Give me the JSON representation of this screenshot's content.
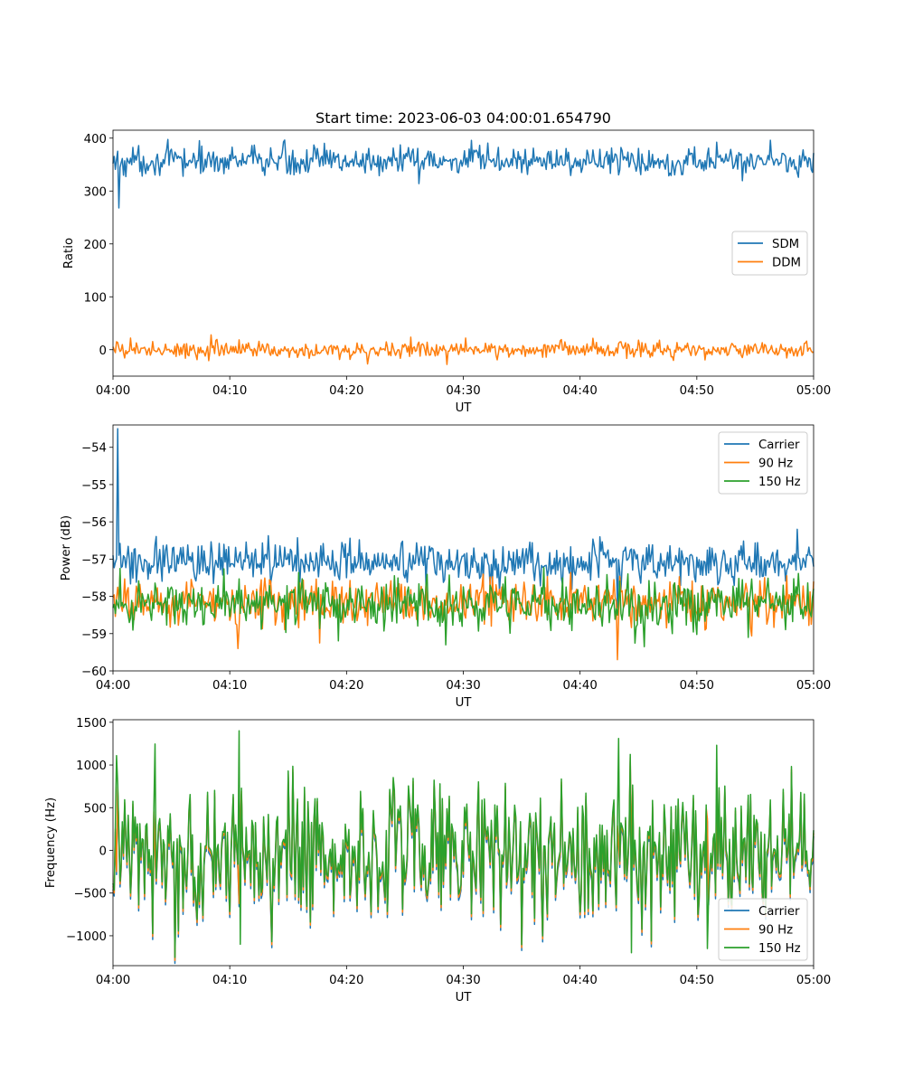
{
  "chart_data": [
    {
      "type": "line",
      "title": "Start time: 2023-06-03 04:00:01.654790",
      "xlabel": "UT",
      "ylabel": "Ratio",
      "xlim": [
        "04:00",
        "05:00"
      ],
      "ylim": [
        -50,
        415
      ],
      "x_ticks": [
        "04:00",
        "04:10",
        "04:20",
        "04:30",
        "04:40",
        "04:50",
        "05:00"
      ],
      "y_ticks": [
        0,
        100,
        200,
        300,
        400
      ],
      "grid": false,
      "legend_placement": "center-right",
      "series": [
        {
          "name": "SDM",
          "color": "#1f77b4",
          "baseline": 357,
          "spread": 14,
          "points": [
            [
              0.0,
              352
            ],
            [
              0.5,
              268
            ],
            [
              14.6,
              393
            ],
            [
              26.2,
              314
            ],
            [
              56.3,
              396
            ],
            [
              60.0,
              372
            ]
          ]
        },
        {
          "name": "DDM",
          "color": "#ff7f0e",
          "baseline": 0,
          "spread": 8,
          "points": [
            [
              1.5,
              22
            ],
            [
              8.4,
              28
            ],
            [
              21.8,
              -27
            ],
            [
              28.6,
              -28
            ],
            [
              60.0,
              -4
            ]
          ]
        }
      ]
    },
    {
      "type": "line",
      "title": "",
      "xlabel": "UT",
      "ylabel": "Power (dB)",
      "xlim": [
        "04:00",
        "05:00"
      ],
      "ylim": [
        -60,
        -53.4
      ],
      "x_ticks": [
        "04:00",
        "04:10",
        "04:20",
        "04:30",
        "04:40",
        "04:50",
        "05:00"
      ],
      "y_ticks": [
        -60,
        -59,
        -58,
        -57,
        -56,
        -55,
        -54
      ],
      "grid": false,
      "legend_placement": "upper-right",
      "series": [
        {
          "name": "Carrier",
          "color": "#1f77b4",
          "baseline": -57.1,
          "spread": 0.28,
          "points": [
            [
              0.0,
              -56.9
            ],
            [
              0.4,
              -53.5
            ],
            [
              0.8,
              -57.2
            ],
            [
              43.2,
              -58.3
            ],
            [
              58.6,
              -56.2
            ],
            [
              60.0,
              -57.2
            ]
          ]
        },
        {
          "name": "90 Hz",
          "color": "#ff7f0e",
          "baseline": -58.15,
          "spread": 0.32,
          "points": [
            [
              10.7,
              -59.4
            ],
            [
              17.7,
              -59.25
            ],
            [
              43.2,
              -59.7
            ],
            [
              60.0,
              -57.6
            ]
          ]
        },
        {
          "name": "150 Hz",
          "color": "#2ca02c",
          "baseline": -58.2,
          "spread": 0.34,
          "points": [
            [
              28.5,
              -59.3
            ],
            [
              45.5,
              -59.35
            ],
            [
              60.0,
              -57.8
            ]
          ]
        }
      ]
    },
    {
      "type": "line",
      "title": "",
      "xlabel": "UT",
      "ylabel": "Frequency (Hz)",
      "xlim": [
        "04:00",
        "05:00"
      ],
      "ylim": [
        -1350,
        1530
      ],
      "x_ticks": [
        "04:00",
        "04:10",
        "04:20",
        "04:30",
        "04:40",
        "04:50",
        "05:00"
      ],
      "y_ticks": [
        -1000,
        -500,
        0,
        500,
        1000,
        1500
      ],
      "grid": false,
      "legend_placement": "lower-right",
      "series": [
        {
          "name": "Carrier",
          "color": "#1f77b4",
          "offset": -70,
          "spread": 430
        },
        {
          "name": "90 Hz",
          "color": "#ff7f0e",
          "offset": -35,
          "spread": 430
        },
        {
          "name": "150 Hz",
          "color": "#2ca02c",
          "offset": 0,
          "spread": 430,
          "points": [
            [
              0.3,
              1110
            ],
            [
              3.6,
              1245
            ],
            [
              10.8,
              1400
            ],
            [
              10.9,
              -1100
            ],
            [
              43.3,
              1310
            ],
            [
              44.4,
              -1200
            ],
            [
              50.9,
              -1150
            ],
            [
              51.7,
              1230
            ]
          ]
        }
      ]
    }
  ]
}
